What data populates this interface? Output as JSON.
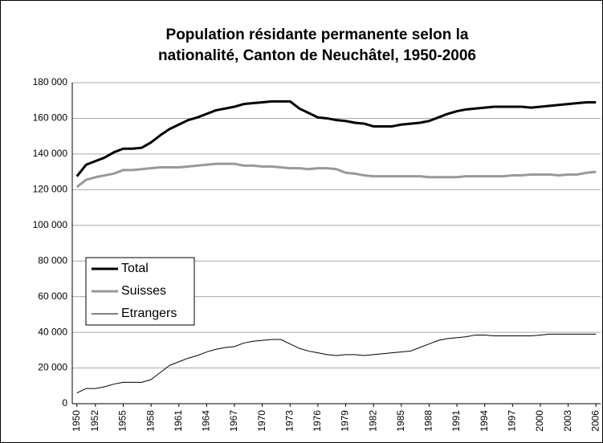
{
  "chart_data": {
    "type": "line",
    "title": [
      "Population résidante permanente selon la",
      "nationalité, Canton de Neuchâtel, 1950-2006"
    ],
    "categories": [
      "1950",
      null,
      "1952",
      null,
      null,
      "1955",
      null,
      null,
      "1958",
      null,
      null,
      "1961",
      null,
      null,
      "1964",
      null,
      null,
      "1967",
      null,
      null,
      "1970",
      null,
      null,
      "1973",
      null,
      null,
      "1976",
      null,
      null,
      "1979",
      null,
      null,
      "1982",
      null,
      null,
      "1985",
      null,
      null,
      "1988",
      null,
      null,
      "1991",
      null,
      null,
      "1994",
      null,
      null,
      "1997",
      null,
      null,
      "2000",
      null,
      null,
      "2003",
      null,
      null,
      "2006"
    ],
    "series": [
      {
        "name": "Total",
        "color": "#000000",
        "width": 3,
        "values": [
          127500,
          134000,
          136000,
          138000,
          141000,
          143000,
          143000,
          143500,
          146500,
          150500,
          154000,
          156500,
          159000,
          160500,
          162500,
          164500,
          165500,
          166500,
          168000,
          168500,
          169000,
          169500,
          169500,
          169500,
          165500,
          163000,
          160500,
          160000,
          159000,
          158500,
          157500,
          157000,
          155500,
          155500,
          155500,
          156500,
          157000,
          157500,
          158500,
          160500,
          162500,
          164000,
          165000,
          165500,
          166000,
          166500,
          166500,
          166500,
          166500,
          166000,
          166500,
          167000,
          167500,
          168000,
          168500,
          169000,
          169000
        ]
      },
      {
        "name": "Suisses",
        "color": "#999999",
        "width": 3,
        "values": [
          121500,
          125500,
          127000,
          128000,
          129000,
          131000,
          131000,
          131500,
          132000,
          132500,
          132500,
          132500,
          133000,
          133500,
          134000,
          134500,
          134500,
          134500,
          133500,
          133500,
          133000,
          133000,
          132500,
          132000,
          132000,
          131500,
          132000,
          132000,
          131500,
          129500,
          129000,
          128000,
          127500,
          127500,
          127500,
          127500,
          127500,
          127500,
          127000,
          127000,
          127000,
          127000,
          127500,
          127500,
          127500,
          127500,
          127500,
          128000,
          128000,
          128500,
          128500,
          128500,
          128000,
          128500,
          128500,
          129500,
          130000
        ]
      },
      {
        "name": "Etrangers",
        "color": "#000000",
        "width": 1,
        "values": [
          6000,
          8500,
          8500,
          9500,
          11000,
          12000,
          12000,
          12000,
          13500,
          17500,
          21500,
          23500,
          25500,
          27000,
          29000,
          30500,
          31500,
          32000,
          34000,
          35000,
          35500,
          36000,
          36000,
          33500,
          31000,
          29500,
          28500,
          27500,
          27000,
          27500,
          27500,
          27000,
          27500,
          28000,
          28500,
          29000,
          29500,
          31500,
          33500,
          35500,
          36500,
          37000,
          37500,
          38500,
          38500,
          38000,
          38000,
          38000,
          38000,
          38000,
          38500,
          39000,
          39000,
          39000,
          39000,
          39000,
          39000
        ]
      }
    ],
    "ylim": [
      0,
      180000
    ],
    "yticks": [
      {
        "value": 0,
        "label": "0"
      },
      {
        "value": 20000,
        "label": "20 000"
      },
      {
        "value": 40000,
        "label": "40 000"
      },
      {
        "value": 60000,
        "label": "60 000"
      },
      {
        "value": 80000,
        "label": "80 000"
      },
      {
        "value": 100000,
        "label": "100 000"
      },
      {
        "value": 120000,
        "label": "120 000"
      },
      {
        "value": 140000,
        "label": "140 000"
      },
      {
        "value": 160000,
        "label": "160 000"
      },
      {
        "value": 180000,
        "label": "180 000"
      }
    ],
    "grid": true,
    "legend": "lower-left"
  }
}
